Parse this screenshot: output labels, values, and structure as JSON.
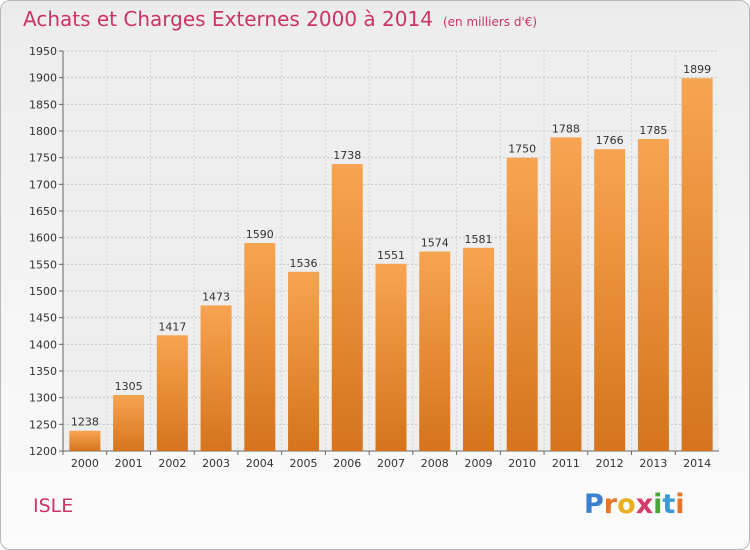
{
  "header": {
    "title": "Achats et Charges Externes 2000 à 2014",
    "unit": "(en milliers d'€)"
  },
  "footer": {
    "commune": "ISLE",
    "logo_letters": [
      "P",
      "r",
      "o",
      "x",
      "i",
      "t",
      "i"
    ],
    "logo_colors": [
      "#3a7fd0",
      "#e8732a",
      "#e8b020",
      "#d43a6a",
      "#4aa83a",
      "#3a9ad8",
      "#e8732a"
    ]
  },
  "colors": {
    "accent": "#cc3366",
    "bar_top": "#f7a452",
    "bar_bottom": "#d5741c"
  },
  "chart_data": {
    "type": "bar",
    "title": "Achats et Charges Externes 2000 à 2014",
    "subtitle": "(en milliers d'€)",
    "categories": [
      "2000",
      "2001",
      "2002",
      "2003",
      "2004",
      "2005",
      "2006",
      "2007",
      "2008",
      "2009",
      "2010",
      "2011",
      "2012",
      "2013",
      "2014"
    ],
    "values": [
      1238,
      1305,
      1417,
      1473,
      1590,
      1536,
      1738,
      1551,
      1574,
      1581,
      1750,
      1788,
      1766,
      1785,
      1899
    ],
    "xlabel": "",
    "ylabel": "",
    "ylim": [
      1200,
      1950
    ],
    "yticks": [
      1200,
      1250,
      1300,
      1350,
      1400,
      1450,
      1500,
      1550,
      1600,
      1650,
      1700,
      1750,
      1800,
      1850,
      1900,
      1950
    ],
    "grid": true
  }
}
